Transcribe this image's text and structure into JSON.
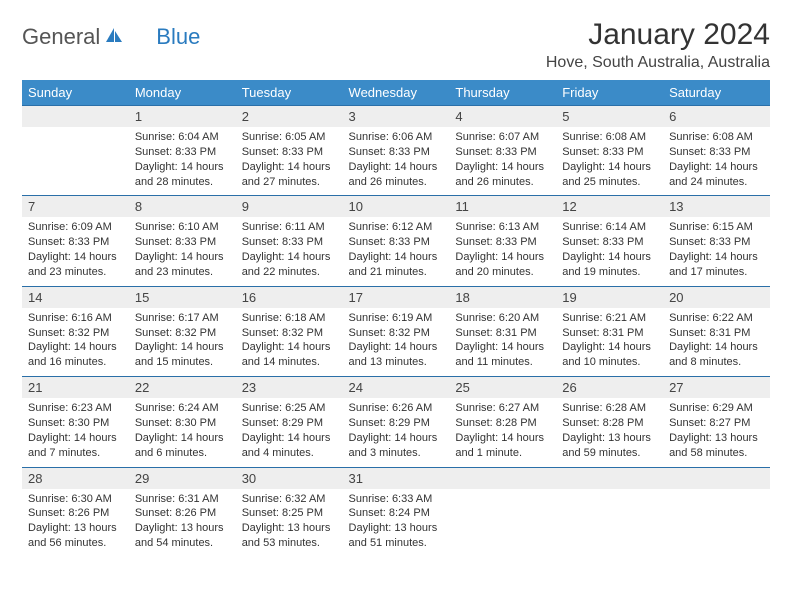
{
  "brand": {
    "name1": "General",
    "name2": "Blue"
  },
  "title": "January 2024",
  "location": "Hove, South Australia, Australia",
  "header_bg": "#3b8bc8",
  "daynum_bg": "#eeeeee",
  "border_color": "#2a6fa8",
  "text_color": "#333333",
  "weekdays": [
    "Sunday",
    "Monday",
    "Tuesday",
    "Wednesday",
    "Thursday",
    "Friday",
    "Saturday"
  ],
  "start_offset": 1,
  "days": [
    {
      "n": 1,
      "sr": "6:04 AM",
      "ss": "8:33 PM",
      "d": "14 hours and 28 minutes."
    },
    {
      "n": 2,
      "sr": "6:05 AM",
      "ss": "8:33 PM",
      "d": "14 hours and 27 minutes."
    },
    {
      "n": 3,
      "sr": "6:06 AM",
      "ss": "8:33 PM",
      "d": "14 hours and 26 minutes."
    },
    {
      "n": 4,
      "sr": "6:07 AM",
      "ss": "8:33 PM",
      "d": "14 hours and 26 minutes."
    },
    {
      "n": 5,
      "sr": "6:08 AM",
      "ss": "8:33 PM",
      "d": "14 hours and 25 minutes."
    },
    {
      "n": 6,
      "sr": "6:08 AM",
      "ss": "8:33 PM",
      "d": "14 hours and 24 minutes."
    },
    {
      "n": 7,
      "sr": "6:09 AM",
      "ss": "8:33 PM",
      "d": "14 hours and 23 minutes."
    },
    {
      "n": 8,
      "sr": "6:10 AM",
      "ss": "8:33 PM",
      "d": "14 hours and 23 minutes."
    },
    {
      "n": 9,
      "sr": "6:11 AM",
      "ss": "8:33 PM",
      "d": "14 hours and 22 minutes."
    },
    {
      "n": 10,
      "sr": "6:12 AM",
      "ss": "8:33 PM",
      "d": "14 hours and 21 minutes."
    },
    {
      "n": 11,
      "sr": "6:13 AM",
      "ss": "8:33 PM",
      "d": "14 hours and 20 minutes."
    },
    {
      "n": 12,
      "sr": "6:14 AM",
      "ss": "8:33 PM",
      "d": "14 hours and 19 minutes."
    },
    {
      "n": 13,
      "sr": "6:15 AM",
      "ss": "8:33 PM",
      "d": "14 hours and 17 minutes."
    },
    {
      "n": 14,
      "sr": "6:16 AM",
      "ss": "8:32 PM",
      "d": "14 hours and 16 minutes."
    },
    {
      "n": 15,
      "sr": "6:17 AM",
      "ss": "8:32 PM",
      "d": "14 hours and 15 minutes."
    },
    {
      "n": 16,
      "sr": "6:18 AM",
      "ss": "8:32 PM",
      "d": "14 hours and 14 minutes."
    },
    {
      "n": 17,
      "sr": "6:19 AM",
      "ss": "8:32 PM",
      "d": "14 hours and 13 minutes."
    },
    {
      "n": 18,
      "sr": "6:20 AM",
      "ss": "8:31 PM",
      "d": "14 hours and 11 minutes."
    },
    {
      "n": 19,
      "sr": "6:21 AM",
      "ss": "8:31 PM",
      "d": "14 hours and 10 minutes."
    },
    {
      "n": 20,
      "sr": "6:22 AM",
      "ss": "8:31 PM",
      "d": "14 hours and 8 minutes."
    },
    {
      "n": 21,
      "sr": "6:23 AM",
      "ss": "8:30 PM",
      "d": "14 hours and 7 minutes."
    },
    {
      "n": 22,
      "sr": "6:24 AM",
      "ss": "8:30 PM",
      "d": "14 hours and 6 minutes."
    },
    {
      "n": 23,
      "sr": "6:25 AM",
      "ss": "8:29 PM",
      "d": "14 hours and 4 minutes."
    },
    {
      "n": 24,
      "sr": "6:26 AM",
      "ss": "8:29 PM",
      "d": "14 hours and 3 minutes."
    },
    {
      "n": 25,
      "sr": "6:27 AM",
      "ss": "8:28 PM",
      "d": "14 hours and 1 minute."
    },
    {
      "n": 26,
      "sr": "6:28 AM",
      "ss": "8:28 PM",
      "d": "13 hours and 59 minutes."
    },
    {
      "n": 27,
      "sr": "6:29 AM",
      "ss": "8:27 PM",
      "d": "13 hours and 58 minutes."
    },
    {
      "n": 28,
      "sr": "6:30 AM",
      "ss": "8:26 PM",
      "d": "13 hours and 56 minutes."
    },
    {
      "n": 29,
      "sr": "6:31 AM",
      "ss": "8:26 PM",
      "d": "13 hours and 54 minutes."
    },
    {
      "n": 30,
      "sr": "6:32 AM",
      "ss": "8:25 PM",
      "d": "13 hours and 53 minutes."
    },
    {
      "n": 31,
      "sr": "6:33 AM",
      "ss": "8:24 PM",
      "d": "13 hours and 51 minutes."
    }
  ],
  "labels": {
    "sunrise": "Sunrise:",
    "sunset": "Sunset:",
    "daylight": "Daylight:"
  }
}
